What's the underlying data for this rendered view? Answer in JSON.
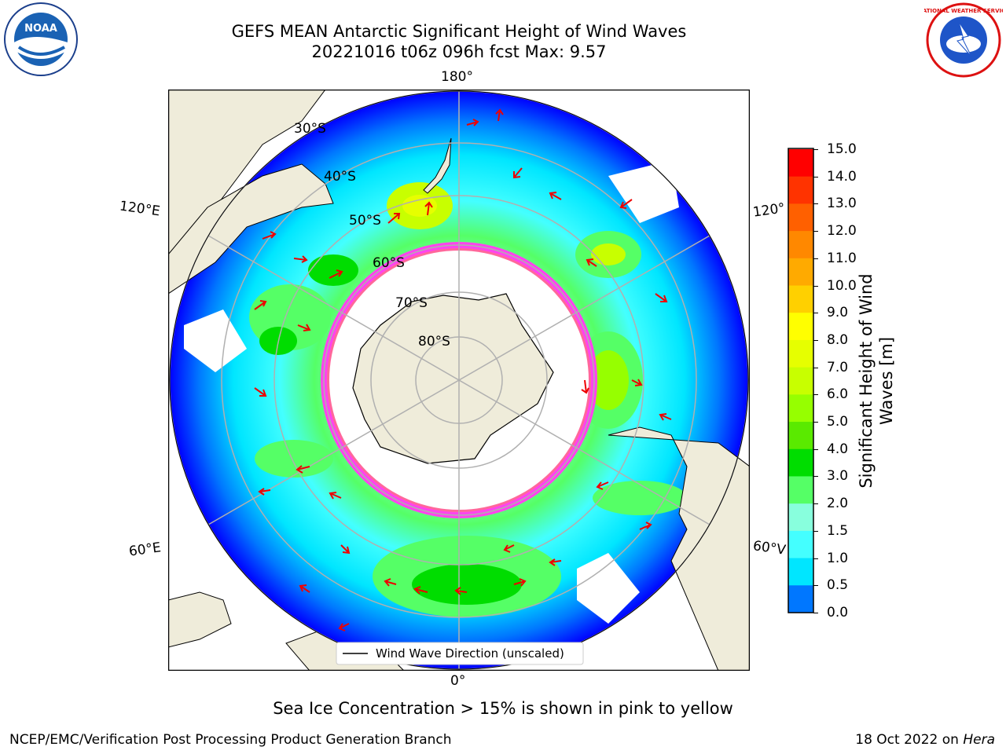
{
  "header": {
    "title_line1": "GEFS MEAN Antarctic Significant Height of Wind Waves",
    "title_line2": "20221016 t06z 096h fcst   Max: 9.57"
  },
  "map": {
    "meridian_labels": {
      "top": "180°",
      "bottom": "0°",
      "upper_left": "120°E",
      "upper_right": "120°",
      "lower_left": "60°E",
      "lower_right": "60°V"
    },
    "latitude_labels": [
      "30°S",
      "40°S",
      "50°S",
      "60°S",
      "70°S",
      "80°S"
    ],
    "legend_label": "Wind Wave Direction (unscaled)",
    "colors": {
      "land": "#efecda",
      "ocean_white": "#ffffff",
      "sea_ice": "#ff44ee",
      "arrow": "#ee0000",
      "grid": "#b0b0b0"
    }
  },
  "colorbar": {
    "label_line1": "Significant Height of Wind",
    "label_line2": "Waves [m]",
    "ticks": [
      "15.0",
      "14.0",
      "13.0",
      "12.0",
      "11.0",
      "10.0",
      "9.0",
      "8.0",
      "7.0",
      "6.0",
      "5.0",
      "4.0",
      "3.0",
      "2.0",
      "1.5",
      "1.0",
      "0.5",
      "0.0"
    ],
    "bin_colors": [
      "#ff0000",
      "#ff3300",
      "#ff6000",
      "#ff8800",
      "#ffaa00",
      "#ffd000",
      "#ffff00",
      "#e6ff00",
      "#c8ff00",
      "#96ff00",
      "#5aea00",
      "#00dd00",
      "#55ff66",
      "#88ffdd",
      "#44ffff",
      "#00e6ff",
      "#0077ff",
      "#0000ff"
    ]
  },
  "footer": {
    "sea_ice_note": "Sea Ice Concentration > 15% is shown in pink to yellow",
    "producer": "NCEP/EMC/Verification Post Processing Product Generation Branch",
    "date": "18 Oct 2022 on",
    "host": "Hera"
  },
  "logos": {
    "left": "NOAA",
    "right": "NATIONAL WEATHER SERVICE"
  }
}
